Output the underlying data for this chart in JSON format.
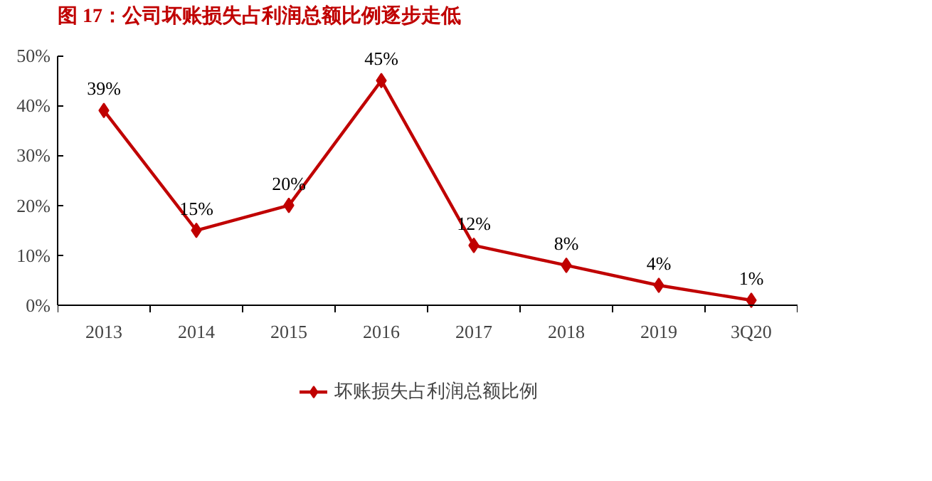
{
  "chart_data": {
    "type": "line",
    "title": "图 17：公司坏账损失占利润总额比例逐步走低",
    "categories": [
      "2013",
      "2014",
      "2015",
      "2016",
      "2017",
      "2018",
      "2019",
      "3Q20"
    ],
    "series": [
      {
        "name": "坏账损失占利润总额比例",
        "color": "#c00000",
        "values": [
          39,
          15,
          20,
          45,
          12,
          8,
          4,
          1
        ],
        "value_labels": [
          "39%",
          "15%",
          "20%",
          "45%",
          "12%",
          "8%",
          "4%",
          "1%"
        ]
      }
    ],
    "ylim": [
      0,
      50
    ],
    "yticks": [
      {
        "value": 0,
        "label": "0%"
      },
      {
        "value": 10,
        "label": "10%"
      },
      {
        "value": 20,
        "label": "20%"
      },
      {
        "value": 30,
        "label": "30%"
      },
      {
        "value": 40,
        "label": "40%"
      },
      {
        "value": 50,
        "label": "50%"
      }
    ],
    "grid": false,
    "legend": "bottom",
    "marker": "diamond",
    "line_style": "solid"
  }
}
